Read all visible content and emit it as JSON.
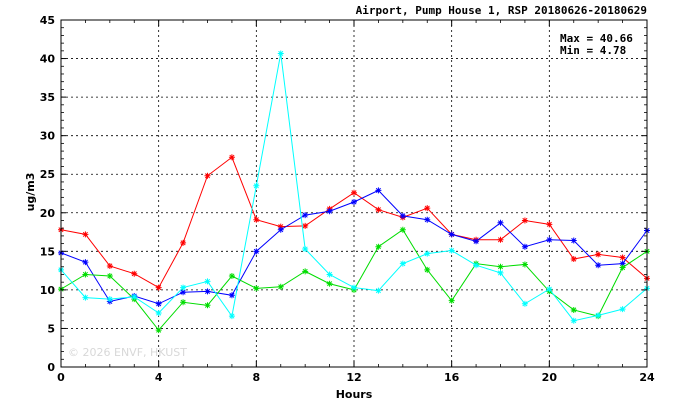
{
  "chart_data": {
    "type": "line",
    "title": "Airport, Pump House 1, RSP 20180626-20180629",
    "xlabel": "Hours",
    "ylabel": "ug/m3",
    "xlim": [
      0,
      24
    ],
    "ylim": [
      0,
      45
    ],
    "x_ticks": [
      "0",
      "4",
      "8",
      "12",
      "16",
      "20",
      "24"
    ],
    "y_ticks": [
      "0",
      "5",
      "10",
      "15",
      "20",
      "25",
      "30",
      "35",
      "40",
      "45"
    ],
    "grid": true,
    "stats": {
      "max_label": "Max = 40.66",
      "min_label": "Min =  4.78"
    },
    "watermark": "© 2026  ENVF, HKUST",
    "x": [
      0,
      1,
      2,
      3,
      4,
      5,
      6,
      7,
      8,
      9,
      10,
      11,
      12,
      13,
      14,
      15,
      16,
      17,
      18,
      19,
      20,
      21,
      22,
      23,
      24
    ],
    "series": [
      {
        "color": "#ff0000",
        "values": [
          17.8,
          17.2,
          13.1,
          12.1,
          10.3,
          16.1,
          24.8,
          27.2,
          19.1,
          18.2,
          18.3,
          20.5,
          22.6,
          20.4,
          19.4,
          20.6,
          17.2,
          16.5,
          16.5,
          19.0,
          18.5,
          14.0,
          14.6,
          14.2,
          11.5
        ]
      },
      {
        "color": "#0000ff",
        "values": [
          14.8,
          13.6,
          8.5,
          9.2,
          8.2,
          9.7,
          9.8,
          9.3,
          15.0,
          17.8,
          19.7,
          20.2,
          21.4,
          22.9,
          19.6,
          19.1,
          17.2,
          16.3,
          18.7,
          15.6,
          16.5,
          16.4,
          13.2,
          13.4,
          17.7
        ]
      },
      {
        "color": "#00dd00",
        "values": [
          10.1,
          12.0,
          11.8,
          8.8,
          4.78,
          8.4,
          8.0,
          11.8,
          10.2,
          10.4,
          12.4,
          10.8,
          10.0,
          15.6,
          17.8,
          12.6,
          8.6,
          13.4,
          13.0,
          13.3,
          9.8,
          7.4,
          6.6,
          12.9,
          15.0
        ]
      },
      {
        "color": "#00ffff",
        "values": [
          12.6,
          9.0,
          8.8,
          9.1,
          7.0,
          10.3,
          11.1,
          6.6,
          23.5,
          40.66,
          15.3,
          12.0,
          10.3,
          9.9,
          13.4,
          14.7,
          15.1,
          13.2,
          12.2,
          8.2,
          10.1,
          6.0,
          6.7,
          7.5,
          10.2
        ]
      }
    ]
  }
}
